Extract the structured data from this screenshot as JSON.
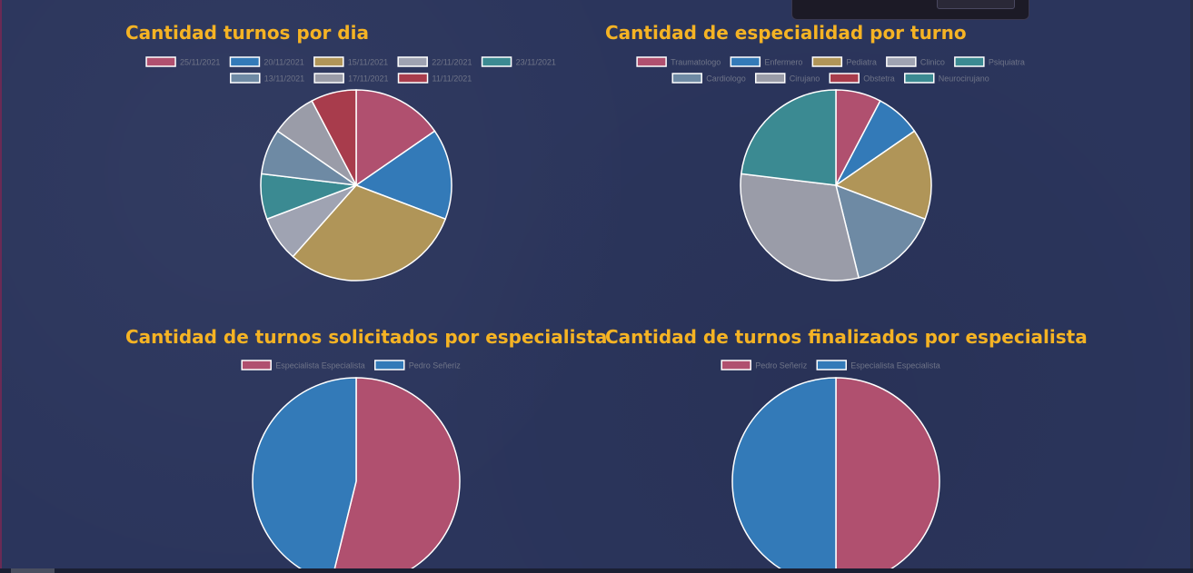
{
  "chart_data": [
    {
      "type": "pie",
      "title": "Cantidad turnos por dia",
      "categories": [
        "25/11/2021",
        "20/11/2021",
        "15/11/2021",
        "22/11/2021",
        "23/11/2021",
        "13/11/2021",
        "17/11/2021",
        "11/11/2021"
      ],
      "values": [
        2,
        2,
        4,
        1,
        1,
        1,
        1,
        1
      ],
      "colors": [
        "#b0506f",
        "#337ab8",
        "#b09558",
        "#9fa3b2",
        "#3b8a92",
        "#6e8aa4",
        "#9a9ca8",
        "#a83c4c"
      ],
      "legend": "top"
    },
    {
      "type": "pie",
      "title": "Cantidad de especialidad por turno",
      "categories": [
        "Traumatologo",
        "Enfermero",
        "Pediatra",
        "Clinico",
        "Psiquiatra",
        "Cardiologo",
        "Cirujano",
        "Obstetra",
        "Neurocirujano"
      ],
      "values": [
        1,
        1,
        2,
        0,
        0,
        2,
        4,
        0,
        3
      ],
      "colors": [
        "#b0506f",
        "#337ab8",
        "#b09558",
        "#9fa3b2",
        "#3b8a92",
        "#6e8aa4",
        "#9a9ca8",
        "#a83c4c",
        "#3b8a92"
      ],
      "legend": "top"
    },
    {
      "type": "pie",
      "title": "Cantidad de turnos solicitados por especialista",
      "categories": [
        "Especialista Especialista",
        "Pedro Señeriz"
      ],
      "values": [
        7,
        6
      ],
      "colors": [
        "#b0506f",
        "#337ab8"
      ],
      "legend": "top"
    },
    {
      "type": "pie",
      "title": "Cantidad de turnos finalizados por especialista",
      "categories": [
        "Pedro Señeriz",
        "Especialista Especialista"
      ],
      "values": [
        1,
        1
      ],
      "colors": [
        "#b0506f",
        "#337ab8"
      ],
      "legend": "top"
    }
  ]
}
